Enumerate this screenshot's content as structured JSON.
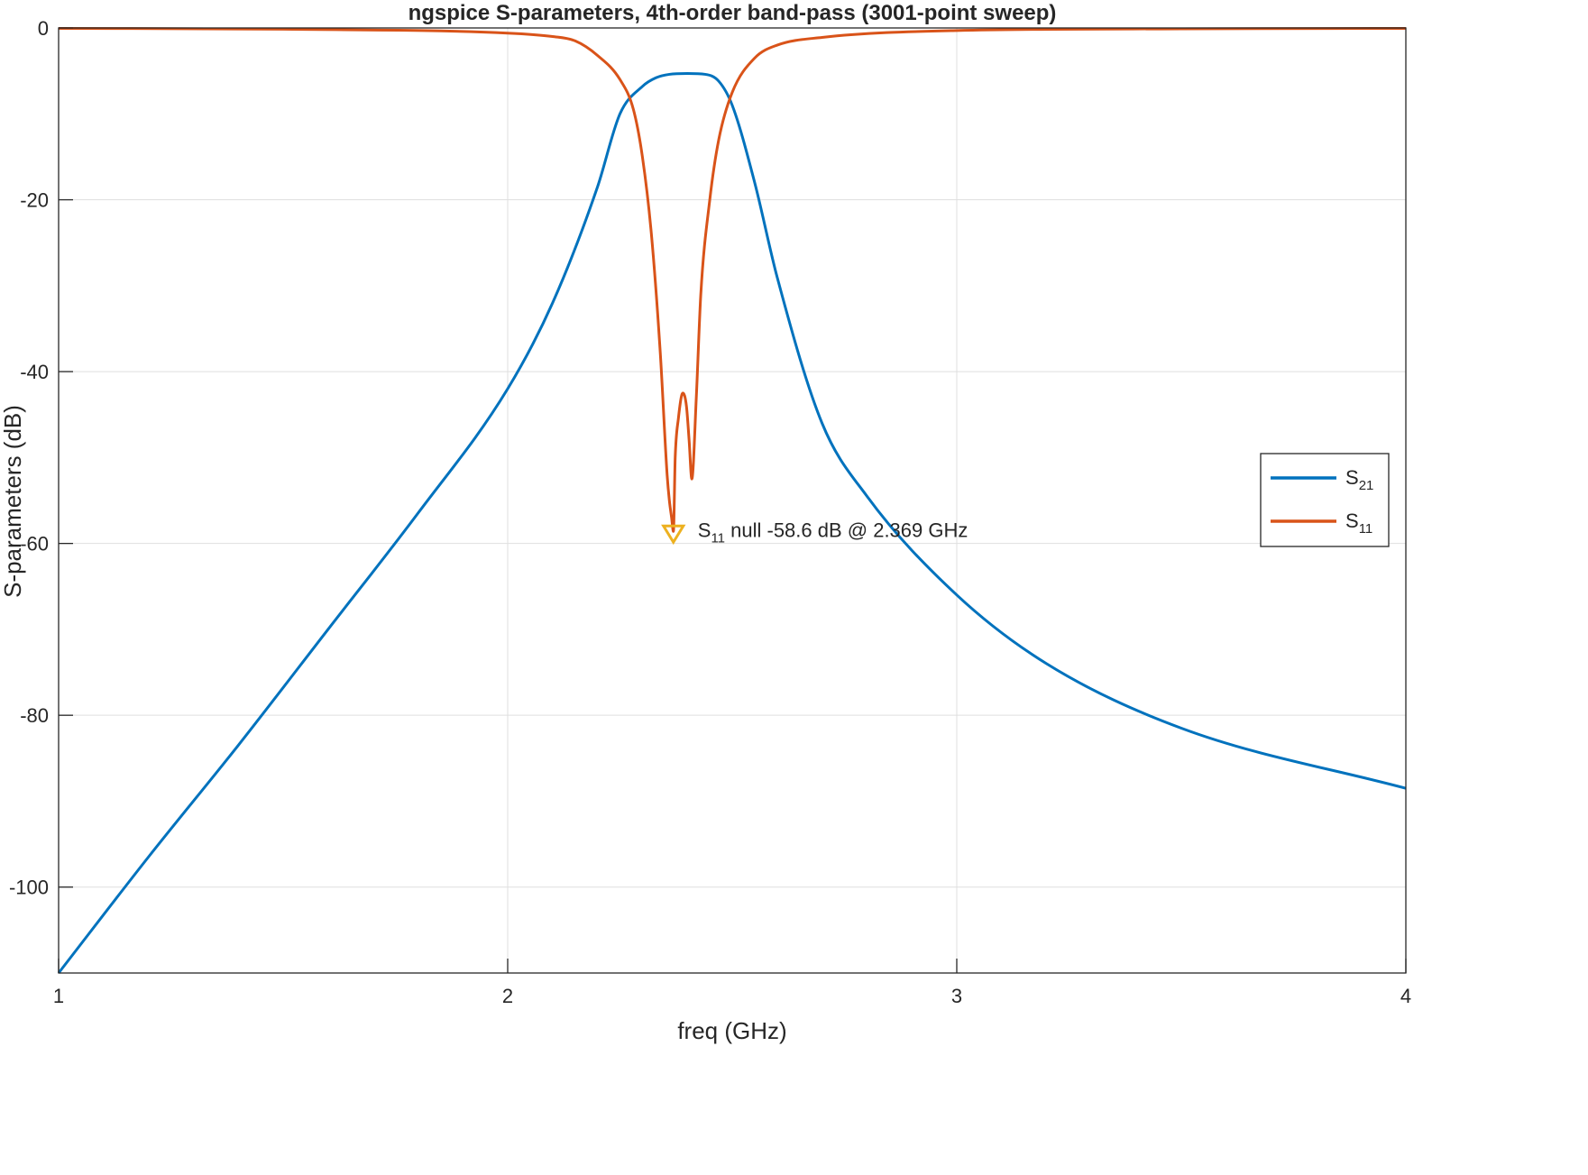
{
  "chart_data": {
    "type": "line",
    "title": "ngspice S-parameters, 4th-order band-pass (3001-point sweep)",
    "xlabel": "freq (GHz)",
    "ylabel": "S-parameters (dB)",
    "xlim": [
      1,
      4
    ],
    "ylim": [
      -110,
      0
    ],
    "xticks": [
      1,
      2,
      3,
      4
    ],
    "xtick_labels": [
      "1",
      "2",
      "3",
      "4"
    ],
    "yticks": [
      0,
      -20,
      -40,
      -60,
      -80,
      -100
    ],
    "ytick_labels": [
      "0",
      "-20",
      "-40",
      "-60",
      "-80",
      "-100"
    ],
    "grid": true,
    "legend_position": "right",
    "series": [
      {
        "name": "S21",
        "legend_main": "S",
        "legend_sub": "21",
        "color": "#0072BD",
        "x": [
          1.0,
          1.2,
          1.4,
          1.6,
          1.8,
          2.0,
          2.1,
          2.2,
          2.25,
          2.3,
          2.33,
          2.36,
          2.4,
          2.44,
          2.47,
          2.5,
          2.55,
          2.6,
          2.7,
          2.8,
          3.0,
          3.2,
          3.5,
          4.0
        ],
        "y": [
          -110,
          -96.5,
          -83.5,
          -70,
          -56.5,
          -42,
          -32,
          -18.5,
          -10,
          -6.8,
          -5.8,
          -5.4,
          -5.3,
          -5.4,
          -6.2,
          -9,
          -18,
          -29,
          -46,
          -54.5,
          -66,
          -74,
          -81.5,
          -88.5
        ]
      },
      {
        "name": "S11",
        "legend_main": "S",
        "legend_sub": "11",
        "color": "#D95319",
        "x": [
          1.0,
          1.5,
          2.0,
          2.1,
          2.15,
          2.2,
          2.25,
          2.28,
          2.3,
          2.32,
          2.34,
          2.355,
          2.36,
          2.365,
          2.369,
          2.373,
          2.38,
          2.39,
          2.398,
          2.404,
          2.41,
          2.42,
          2.43,
          2.45,
          2.47,
          2.5,
          2.55,
          2.6,
          2.7,
          3.0,
          3.5,
          4.0
        ],
        "y": [
          -0.05,
          -0.15,
          -0.6,
          -1.0,
          -1.5,
          -3.2,
          -6.0,
          -9.5,
          -15,
          -24,
          -38,
          -52,
          -55,
          -57,
          -58.6,
          -50,
          -45.5,
          -42.5,
          -44,
          -48,
          -52.5,
          -43,
          -31,
          -20,
          -13,
          -7.5,
          -3.5,
          -2.0,
          -1.1,
          -0.3,
          -0.1,
          -0.05
        ]
      }
    ],
    "annotation": {
      "marker_color": "#EDB120",
      "x": 2.369,
      "y": -58.6,
      "label_main": "S",
      "label_sub": "11",
      "label_text": " null -58.6 dB @ 2.369 GHz"
    }
  }
}
